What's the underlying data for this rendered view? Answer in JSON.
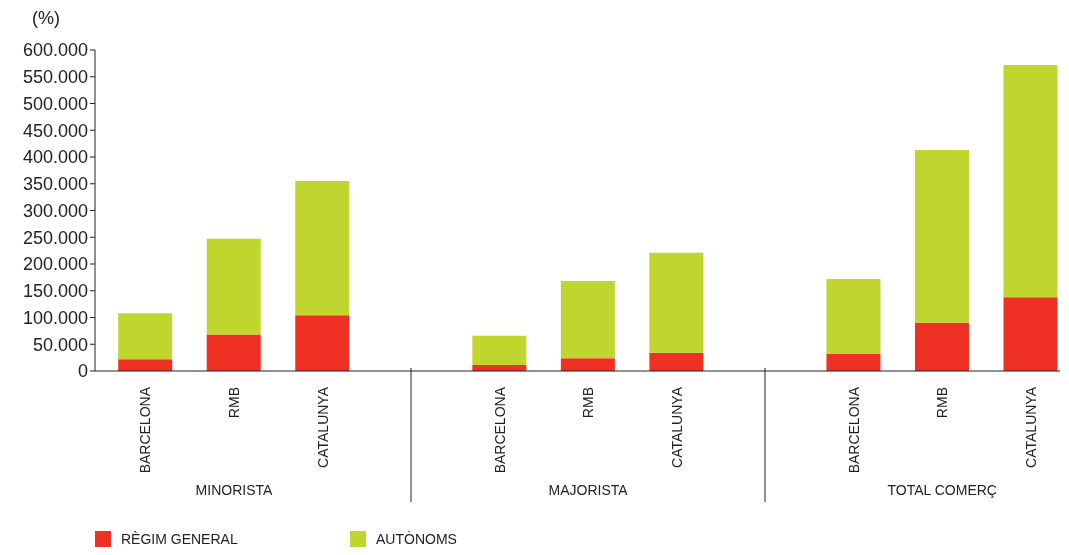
{
  "chart_data": {
    "type": "bar",
    "stacked": true,
    "ylabel": "(%)",
    "categories": [
      "BARCELONA",
      "RMB",
      "CATALUNYA",
      "BARCELONA",
      "RMB",
      "CATALUNYA",
      "BARCELONA",
      "RMB",
      "CATALUNYA"
    ],
    "annotations": [
      "MINORISTA",
      "MAJORISTA",
      "TOTAL COMERÇ"
    ],
    "series": [
      {
        "name": "RÈGIM GENERAL",
        "color": "#ee3124",
        "values": [
          22000,
          68000,
          104000,
          11000,
          24000,
          34000,
          32000,
          90000,
          138000
        ]
      },
      {
        "name": "AUTÒNOMS",
        "color": "#c0d62f",
        "values": [
          86000,
          179000,
          251000,
          55000,
          144000,
          187000,
          140000,
          323000,
          434000
        ]
      }
    ],
    "ylim": [
      0,
      600000
    ],
    "yticks": [
      0,
      {
        "value": 50000,
        "label": "50.000"
      },
      {
        "value": 100000,
        "label": "100.000"
      },
      {
        "value": 150000,
        "label": "150.000"
      },
      {
        "value": 200000,
        "label": "200.000"
      },
      {
        "value": 250000,
        "label": "250.000"
      },
      {
        "value": 300000,
        "label": "300.000"
      },
      {
        "value": 350000,
        "label": "350.000"
      },
      {
        "value": 400000,
        "label": "400.000"
      },
      {
        "value": 450000,
        "label": "450.000"
      },
      {
        "value": 500000,
        "label": "500.000"
      },
      {
        "value": 550000,
        "label": "550.000"
      },
      {
        "value": 600000,
        "label": "600.000"
      }
    ],
    "grid": false,
    "legend": "bottom left"
  }
}
